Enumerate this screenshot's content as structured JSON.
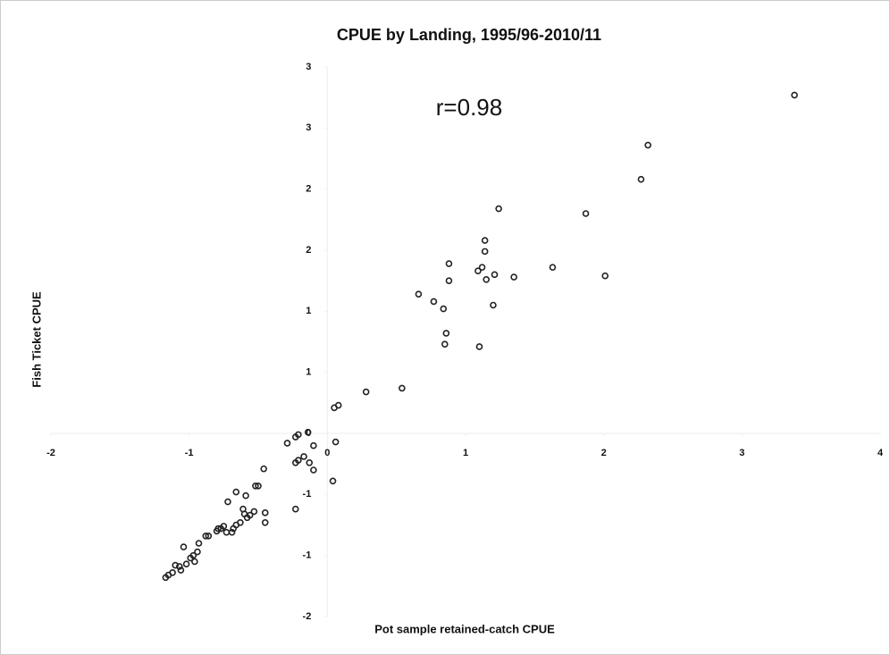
{
  "chart_data": {
    "type": "scatter",
    "title": "CPUE by Landing, 1995/96-2010/11",
    "x_label": "Pot sample retained-catch CPUE",
    "y_label": "Fish Ticket CPUE",
    "annotation": "r=0.98",
    "color": "#222222",
    "xlim": [
      -2,
      4
    ],
    "xticks": [
      -2,
      -1,
      0,
      1,
      2,
      3,
      4
    ],
    "ylim": [
      -1.5,
      3
    ],
    "yticks": [
      {
        "value": 3,
        "label": "3"
      },
      {
        "value": 2.5,
        "label": "3"
      },
      {
        "value": 2,
        "label": "2"
      },
      {
        "value": 1.5,
        "label": "2"
      },
      {
        "value": 1,
        "label": "1"
      },
      {
        "value": 0.5,
        "label": "1"
      },
      {
        "value": 0,
        "label": "0"
      },
      {
        "value": -0.5,
        "label": "-1"
      },
      {
        "value": -1,
        "label": "-1"
      },
      {
        "value": -1.5,
        "label": "-2"
      }
    ],
    "x": [
      3.38,
      2.32,
      2.27,
      1.24,
      1.87,
      1.14,
      1.14,
      0.88,
      1.63,
      1.12,
      1.09,
      1.21,
      2.01,
      1.35,
      1.15,
      0.88,
      0.66,
      0.77,
      0.84,
      1.2,
      0.86,
      0.85,
      1.1,
      0.54,
      0.28,
      0.08,
      0.05,
      -0.21,
      -0.23,
      -0.14,
      -0.29,
      -0.1,
      0.06,
      -0.17,
      -0.21,
      -0.13,
      -0.23,
      -0.1,
      0.04,
      -0.46,
      -0.5,
      -0.52,
      -0.66,
      -0.59,
      -0.72,
      -0.23,
      -0.61,
      -0.45,
      -0.53,
      -0.56,
      -0.6,
      -0.58,
      -0.45,
      -0.63,
      -0.66,
      -0.75,
      -0.77,
      -0.79,
      -0.8,
      -0.73,
      -0.68,
      -0.69,
      -0.86,
      -0.88,
      -0.93,
      -1.04,
      -0.94,
      -0.97,
      -0.99,
      -0.96,
      -1.02,
      -1.07,
      -1.1,
      -1.06,
      -1.12,
      -1.15,
      -1.17
    ],
    "y": [
      2.77,
      2.36,
      2.08,
      1.84,
      1.8,
      1.58,
      1.49,
      1.39,
      1.36,
      1.36,
      1.33,
      1.3,
      1.29,
      1.28,
      1.26,
      1.25,
      1.14,
      1.08,
      1.02,
      1.05,
      0.82,
      0.73,
      0.71,
      0.37,
      0.34,
      0.23,
      0.21,
      -0.01,
      -0.03,
      0.01,
      -0.08,
      -0.1,
      -0.07,
      -0.19,
      -0.22,
      -0.24,
      -0.24,
      -0.3,
      -0.39,
      -0.29,
      -0.43,
      -0.43,
      -0.48,
      -0.51,
      -0.56,
      -0.62,
      -0.62,
      -0.65,
      -0.64,
      -0.67,
      -0.66,
      -0.69,
      -0.73,
      -0.73,
      -0.75,
      -0.76,
      -0.78,
      -0.78,
      -0.8,
      -0.81,
      -0.78,
      -0.81,
      -0.84,
      -0.84,
      -0.9,
      -0.93,
      -0.97,
      -1.0,
      -1.02,
      -1.05,
      -1.07,
      -1.09,
      -1.08,
      -1.12,
      -1.14,
      -1.16,
      -1.18
    ]
  }
}
